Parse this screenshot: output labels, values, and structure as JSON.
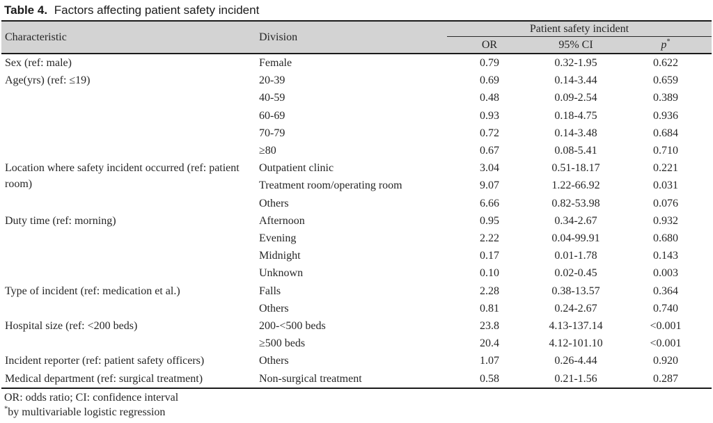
{
  "title": {
    "label": "Table 4.",
    "text": "Factors affecting patient safety incident"
  },
  "table": {
    "header": {
      "characteristic": "Characteristic",
      "division": "Division",
      "span": "Patient safety incident",
      "or": "OR",
      "ci": "95% CI",
      "p": "p",
      "p_sup": "*"
    },
    "groups": [
      {
        "characteristic": "Sex (ref: male)",
        "rows": [
          {
            "division": "Female",
            "or": "0.79",
            "ci": "0.32-1.95",
            "p": "0.622"
          }
        ]
      },
      {
        "characteristic": "Age(yrs) (ref: ≤19)",
        "rows": [
          {
            "division": "20-39",
            "or": "0.69",
            "ci": "0.14-3.44",
            "p": "0.659"
          },
          {
            "division": "40-59",
            "or": "0.48",
            "ci": "0.09-2.54",
            "p": "0.389"
          },
          {
            "division": "60-69",
            "or": "0.93",
            "ci": "0.18-4.75",
            "p": "0.936"
          },
          {
            "division": "70-79",
            "or": "0.72",
            "ci": "0.14-3.48",
            "p": "0.684"
          },
          {
            "division": "≥80",
            "or": "0.67",
            "ci": "0.08-5.41",
            "p": "0.710"
          }
        ]
      },
      {
        "characteristic": "Location where safety incident occurred (ref: patient room)",
        "rows": [
          {
            "division": "Outpatient clinic",
            "or": "3.04",
            "ci": "0.51-18.17",
            "p": "0.221"
          },
          {
            "division": "Treatment room/operating room",
            "or": "9.07",
            "ci": "1.22-66.92",
            "p": "0.031"
          },
          {
            "division": "Others",
            "or": "6.66",
            "ci": "0.82-53.98",
            "p": "0.076"
          }
        ]
      },
      {
        "characteristic": "Duty time (ref: morning)",
        "rows": [
          {
            "division": "Afternoon",
            "or": "0.95",
            "ci": "0.34-2.67",
            "p": "0.932"
          },
          {
            "division": "Evening",
            "or": "2.22",
            "ci": "0.04-99.91",
            "p": "0.680"
          },
          {
            "division": "Midnight",
            "or": "0.17",
            "ci": "0.01-1.78",
            "p": "0.143"
          },
          {
            "division": "Unknown",
            "or": "0.10",
            "ci": "0.02-0.45",
            "p": "0.003"
          }
        ]
      },
      {
        "characteristic": "Type of incident (ref: medication et al.)",
        "rows": [
          {
            "division": "Falls",
            "or": "2.28",
            "ci": "0.38-13.57",
            "p": "0.364"
          },
          {
            "division": "Others",
            "or": "0.81",
            "ci": "0.24-2.67",
            "p": "0.740"
          }
        ]
      },
      {
        "characteristic": "Hospital size (ref: <200 beds)",
        "rows": [
          {
            "division": "200-<500 beds",
            "or": "23.8",
            "ci": "4.13-137.14",
            "p": "<0.001"
          },
          {
            "division": "≥500 beds",
            "or": "20.4",
            "ci": "4.12-101.10",
            "p": "<0.001"
          }
        ]
      },
      {
        "characteristic": "Incident reporter (ref: patient safety officers)",
        "rows": [
          {
            "division": "Others",
            "or": "1.07",
            "ci": "0.26-4.44",
            "p": "0.920"
          }
        ]
      },
      {
        "characteristic": "Medical department (ref: surgical treatment)",
        "rows": [
          {
            "division": "Non-surgical treatment",
            "or": "0.58",
            "ci": "0.21-1.56",
            "p": "0.287"
          }
        ]
      }
    ]
  },
  "footnotes": {
    "line1": "OR: odds ratio; CI: confidence interval",
    "line2_sup": "*",
    "line2": "by multivariable logistic regression"
  },
  "colors": {
    "header_band": "#d3d3d3",
    "rule": "#1a1a1a",
    "text": "#262626"
  }
}
